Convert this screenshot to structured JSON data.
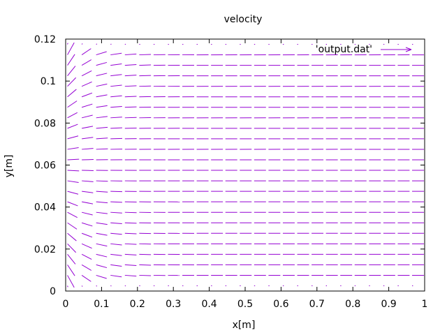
{
  "chart_data": {
    "type": "vector-field",
    "title": "velocity",
    "xlabel": "x[m]",
    "ylabel": "y[m]",
    "xlim": [
      0,
      1
    ],
    "ylim": [
      0,
      0.12
    ],
    "x_ticks": [
      "0",
      "0.1",
      "0.2",
      "0.3",
      "0.4",
      "0.5",
      "0.6",
      "0.7",
      "0.8",
      "0.9",
      "1"
    ],
    "y_ticks": [
      "0",
      "0.02",
      "0.04",
      "0.06",
      "0.08",
      "0.1",
      "0.12"
    ],
    "grid": false,
    "legend_position": "top-right",
    "series": [
      {
        "name": "'output.dat'",
        "color": "#9400d3",
        "x_range": [
          0.005,
          0.965
        ],
        "x_count": 25,
        "y_range": [
          0.0025,
          0.1175
        ],
        "y_count": 24
      }
    ]
  }
}
